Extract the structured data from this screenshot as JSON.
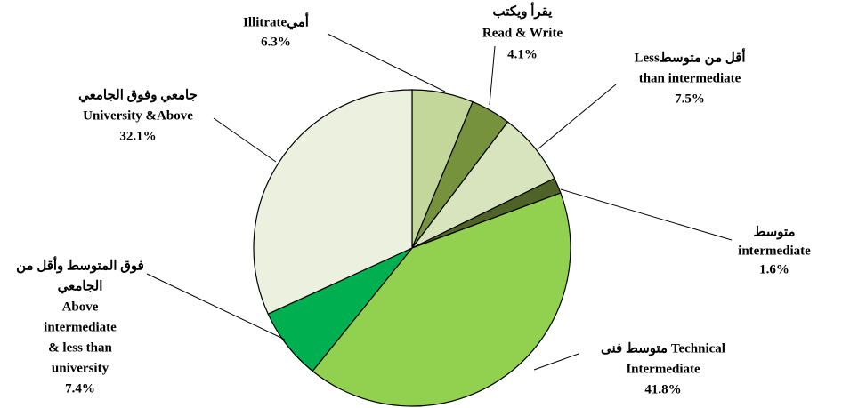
{
  "chart_data": {
    "type": "pie",
    "categories": [
      [
        "Illitrateأمي"
      ],
      [
        "يقرأ ويكتب",
        "Read & Write"
      ],
      [
        "Lessأقل من متوسط",
        "than intermediate"
      ],
      [
        "متوسط",
        "intermediate"
      ],
      [
        "متوسط فنى  Technical",
        "Intermediate"
      ],
      [
        "فوق المتوسط وأقل من",
        "الجامعي",
        "Above",
        "intermediate",
        "& less than",
        "university"
      ],
      [
        "جامعي وفوق الجامعي",
        "University &Above"
      ]
    ],
    "values": [
      6.3,
      4.1,
      7.5,
      1.6,
      41.8,
      7.4,
      32.1
    ],
    "value_labels": [
      "6.3%",
      "4.1%",
      "7.5%",
      "1.6%",
      "41.8%",
      "7.4%",
      "32.1%"
    ],
    "colors": [
      "#c4d79b",
      "#76923c",
      "#d7e4bd",
      "#4f6228",
      "#92d050",
      "#00b050",
      "#ebf1de"
    ]
  }
}
